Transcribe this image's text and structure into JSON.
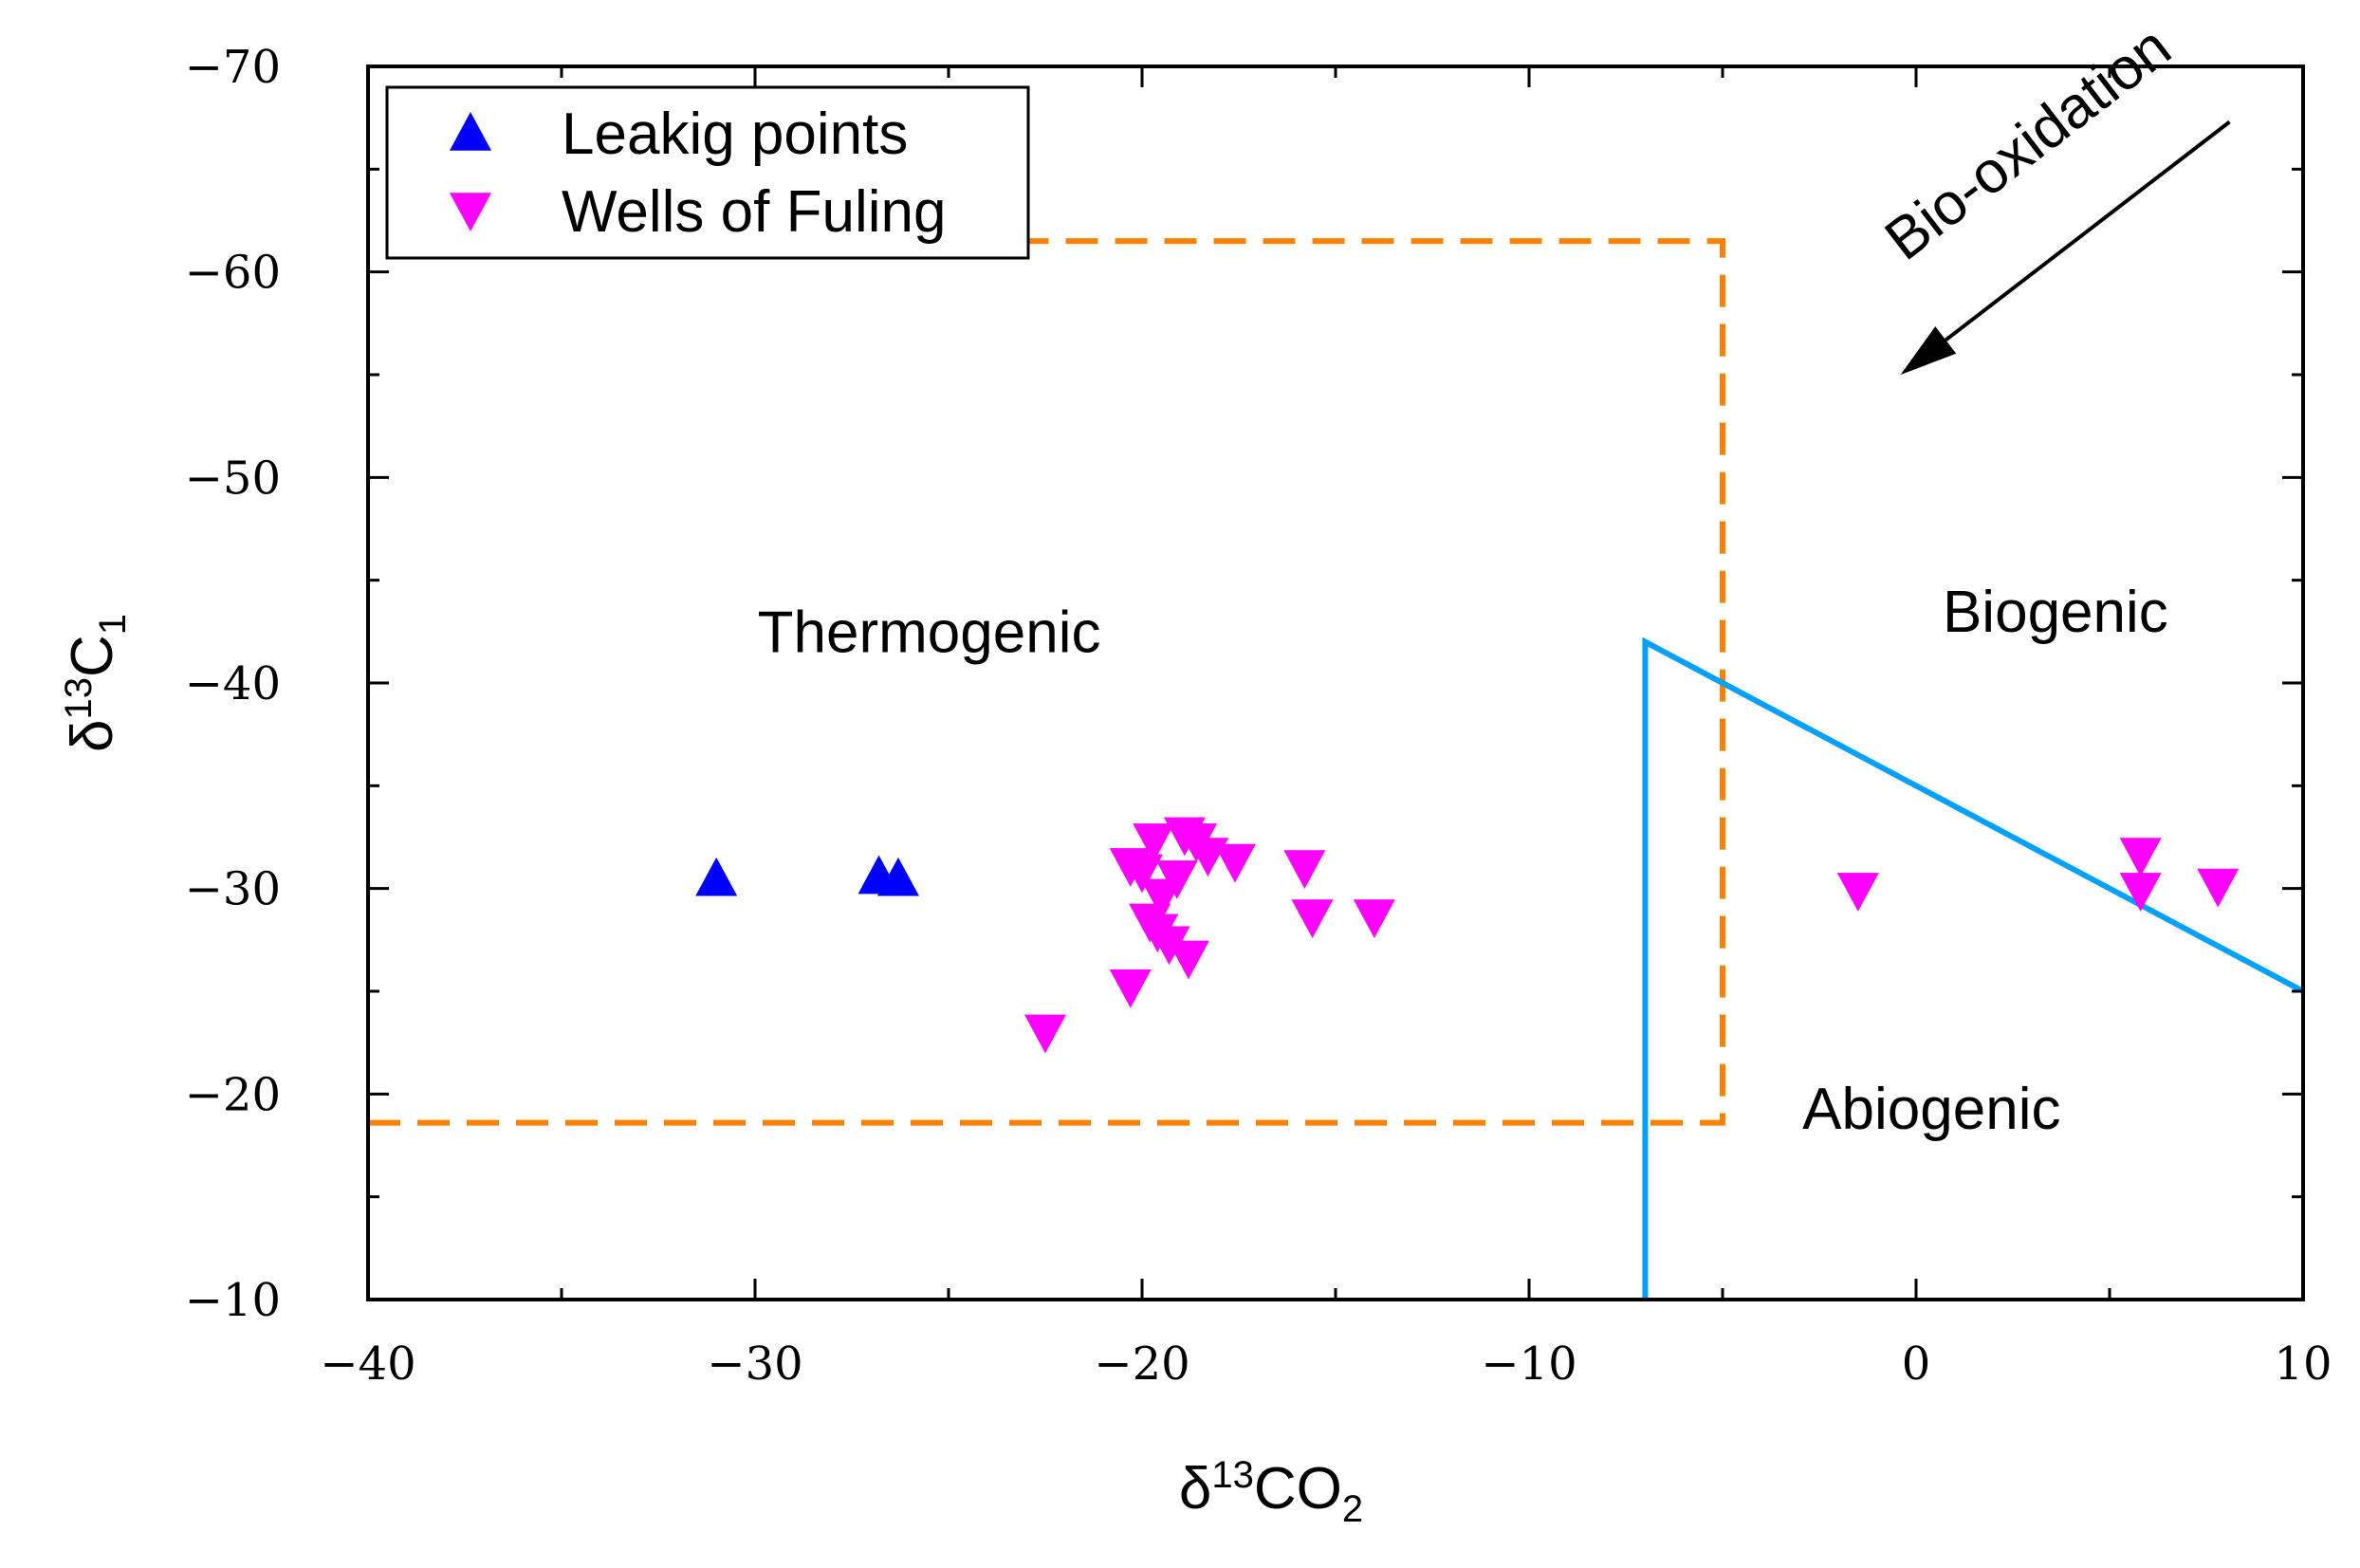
{
  "chart_data": {
    "type": "scatter",
    "title": "",
    "xlabel": "δ13CO2",
    "ylabel": "δ13C1",
    "xlabel_parts": {
      "main": "δ",
      "sup": "13",
      "mid": "CO",
      "sub": "2"
    },
    "ylabel_parts": {
      "main": "δ",
      "sup": "13",
      "mid": "C",
      "sub": "1"
    },
    "xlim": [
      -40,
      10
    ],
    "ylim": [
      -10,
      -70
    ],
    "y_inverted": true,
    "x_ticks": [
      -40,
      -30,
      -20,
      -10,
      0,
      10
    ],
    "y_ticks": [
      -70,
      -60,
      -50,
      -40,
      -30,
      -20,
      -10
    ],
    "x_tick_labels": [
      "−40",
      "−30",
      "−20",
      "−10",
      "0",
      "10"
    ],
    "y_tick_labels": [
      "−70",
      "−60",
      "−50",
      "−40",
      "−30",
      "−20",
      "−10"
    ],
    "grid": false,
    "legend_position": "top-left",
    "series": [
      {
        "name": "Leakig points",
        "marker": "triangle-up",
        "color": "#0000ff",
        "points": [
          [
            -31.0,
            -30.5
          ],
          [
            -26.8,
            -30.6
          ],
          [
            -26.3,
            -30.5
          ]
        ]
      },
      {
        "name": "Wells of Fuling",
        "marker": "triangle-down",
        "color": "#ff00ff",
        "points": [
          [
            -22.5,
            -23.0
          ],
          [
            -20.3,
            -25.2
          ],
          [
            -20.3,
            -31.1
          ],
          [
            -20.0,
            -30.8
          ],
          [
            -19.7,
            -32.3
          ],
          [
            -19.8,
            -28.4
          ],
          [
            -19.6,
            -27.9
          ],
          [
            -19.5,
            -29.6
          ],
          [
            -19.3,
            -27.3
          ],
          [
            -19.1,
            -30.5
          ],
          [
            -18.9,
            -32.6
          ],
          [
            -18.8,
            -26.6
          ],
          [
            -18.6,
            -32.3
          ],
          [
            -18.3,
            -31.6
          ],
          [
            -17.6,
            -31.3
          ],
          [
            -15.8,
            -31.0
          ],
          [
            -15.6,
            -28.6
          ],
          [
            -14.0,
            -28.6
          ],
          [
            -1.5,
            -29.9
          ],
          [
            5.8,
            -31.6
          ],
          [
            5.8,
            -29.9
          ],
          [
            7.8,
            -30.1
          ]
        ]
      }
    ],
    "lines": [
      {
        "name": "thermogenic-boundary",
        "style": "dashed",
        "color": "#ff8000",
        "points": [
          [
            -40,
            -18.6
          ],
          [
            -5,
            -18.6
          ],
          [
            -5,
            -61.5
          ],
          [
            -24.5,
            -61.5
          ]
        ]
      },
      {
        "name": "abiogenic-boundary",
        "style": "solid",
        "color": "#00a0ff",
        "points": [
          [
            -7,
            -10
          ],
          [
            -7,
            -42
          ],
          [
            10,
            -25
          ]
        ]
      }
    ],
    "annotations": [
      {
        "text": "Thermogenic",
        "x": -25.5,
        "y": -41.5
      },
      {
        "text": "Biogenic",
        "x": 3.6,
        "y": -42.5
      },
      {
        "text": "Abiogenic",
        "x": 0.4,
        "y": -18.3
      },
      {
        "text": "Bio-oxidation",
        "x": 3.2,
        "y": -65.5,
        "arrow_from": [
          8.1,
          -67.3
        ],
        "arrow_to": [
          -0.4,
          -55.0
        ]
      }
    ]
  }
}
